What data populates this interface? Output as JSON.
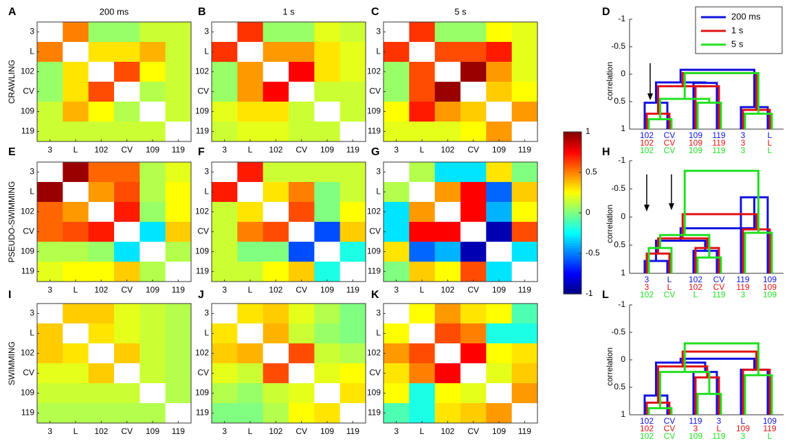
{
  "labels": [
    "3",
    "L",
    "102",
    "CV",
    "109",
    "119"
  ],
  "col_titles": [
    "200 ms",
    "1 s",
    "5 s"
  ],
  "row_titles": [
    "CRAWLING",
    "PSEUDO-SWIMMING",
    "SWIMMING"
  ],
  "panel_letters": [
    "A",
    "B",
    "C",
    "D",
    "E",
    "F",
    "G",
    "H",
    "I",
    "J",
    "K",
    "L"
  ],
  "colorbar": {
    "min": -1,
    "max": 1,
    "ticks": [
      "1",
      "0.5",
      "0",
      "-0.5",
      "-1"
    ]
  },
  "dendro_axis": {
    "label": "correlation",
    "ticks": [
      "-1",
      "-0.5",
      "0",
      "0.5",
      "1"
    ]
  },
  "legend": [
    {
      "name": "200 ms",
      "color": "#1010e0"
    },
    {
      "name": "1 s",
      "color": "#e01010"
    },
    {
      "name": "5 s",
      "color": "#20e020"
    }
  ],
  "chart_data": [
    {
      "type": "heatmap",
      "panel": "A",
      "title": "200 ms",
      "row_label": "CRAWLING",
      "matrix": [
        [
          1,
          0.5,
          0.05,
          0.05,
          0.15,
          0.15
        ],
        [
          0.5,
          1,
          0.3,
          0.3,
          0.4,
          0.15
        ],
        [
          0.05,
          0.3,
          1,
          0.6,
          0.25,
          0.15
        ],
        [
          0.05,
          0.3,
          0.6,
          1,
          0.1,
          0.15
        ],
        [
          0.15,
          0.4,
          0.25,
          0.1,
          1,
          0.15
        ],
        [
          0.15,
          0.15,
          0.15,
          0.15,
          0.15,
          1
        ]
      ]
    },
    {
      "type": "heatmap",
      "panel": "B",
      "title": "1 s",
      "matrix": [
        [
          1,
          0.65,
          0.05,
          0.05,
          0.2,
          0.15
        ],
        [
          0.65,
          1,
          0.45,
          0.45,
          0.3,
          0.2
        ],
        [
          0.05,
          0.45,
          1,
          0.75,
          0.3,
          0.2
        ],
        [
          0.05,
          0.45,
          0.75,
          1,
          0.15,
          0.15
        ],
        [
          0.2,
          0.3,
          0.3,
          0.15,
          1,
          0.15
        ],
        [
          0.15,
          0.2,
          0.2,
          0.15,
          0.15,
          1
        ]
      ]
    },
    {
      "type": "heatmap",
      "panel": "C",
      "title": "5 s",
      "matrix": [
        [
          1,
          0.65,
          0.05,
          0.05,
          0.25,
          0.2
        ],
        [
          0.65,
          1,
          0.6,
          0.6,
          0.7,
          0.2
        ],
        [
          0.05,
          0.6,
          1,
          0.95,
          0.45,
          0.2
        ],
        [
          0.05,
          0.6,
          0.95,
          1,
          0.35,
          0.25
        ],
        [
          0.25,
          0.7,
          0.45,
          0.35,
          1,
          0.45
        ],
        [
          0.2,
          0.2,
          0.2,
          0.25,
          0.45,
          1
        ]
      ]
    },
    {
      "type": "dendrogram",
      "panel": "D",
      "leaves": [
        {
          "color": "#1010e0",
          "labels": [
            "102",
            "CV",
            "109",
            "119",
            "3",
            "L"
          ]
        },
        {
          "color": "#e01010",
          "labels": [
            "102",
            "CV",
            "109",
            "119",
            "3",
            "L"
          ]
        },
        {
          "color": "#20e020",
          "labels": [
            "102",
            "CV",
            "109",
            "119",
            "3",
            "L"
          ]
        }
      ]
    },
    {
      "type": "heatmap",
      "panel": "E",
      "row_label": "PSEUDO-SWIMMING",
      "matrix": [
        [
          1,
          0.95,
          0.55,
          0.55,
          0.1,
          0.2
        ],
        [
          0.95,
          1,
          0.45,
          0.6,
          0.1,
          0.25
        ],
        [
          0.55,
          0.45,
          1,
          0.7,
          0.05,
          0.25
        ],
        [
          0.55,
          0.6,
          0.7,
          1,
          -0.3,
          0.35
        ],
        [
          0.1,
          0.1,
          0.05,
          -0.3,
          1,
          0.1
        ],
        [
          0.2,
          0.25,
          0.25,
          0.35,
          0.1,
          1
        ]
      ]
    },
    {
      "type": "heatmap",
      "panel": "F",
      "matrix": [
        [
          1,
          0.7,
          0.15,
          0.15,
          0.15,
          0.15
        ],
        [
          0.7,
          1,
          0.3,
          0.5,
          0.0,
          0.15
        ],
        [
          0.15,
          0.3,
          1,
          0.6,
          0.0,
          0.25
        ],
        [
          0.15,
          0.5,
          0.6,
          1,
          -0.6,
          0.35
        ],
        [
          0.15,
          0.0,
          0.0,
          -0.6,
          1,
          -0.2
        ],
        [
          0.15,
          0.15,
          0.25,
          0.35,
          -0.2,
          1
        ]
      ]
    },
    {
      "type": "heatmap",
      "panel": "G",
      "matrix": [
        [
          1,
          0.1,
          -0.3,
          -0.3,
          0.3,
          0.0
        ],
        [
          0.1,
          1,
          0.45,
          0.75,
          -0.55,
          0.35
        ],
        [
          -0.3,
          0.45,
          1,
          0.75,
          -0.4,
          0.25
        ],
        [
          -0.3,
          0.75,
          0.75,
          1,
          -0.9,
          0.6
        ],
        [
          0.3,
          -0.55,
          -0.4,
          -0.9,
          1,
          -0.3
        ],
        [
          0.0,
          0.35,
          0.25,
          0.6,
          -0.3,
          1
        ]
      ]
    },
    {
      "type": "dendrogram",
      "panel": "H",
      "leaves": [
        {
          "color": "#1010e0",
          "labels": [
            "3",
            "L",
            "102",
            "CV",
            "119",
            "109"
          ]
        },
        {
          "color": "#e01010",
          "labels": [
            "3",
            "L",
            "102",
            "CV",
            "119",
            "109"
          ]
        },
        {
          "color": "#20e020",
          "labels": [
            "102",
            "CV",
            "L",
            "119",
            "3",
            "109"
          ]
        }
      ]
    },
    {
      "type": "heatmap",
      "panel": "I",
      "row_label": "SWIMMING",
      "matrix": [
        [
          1,
          0.35,
          0.35,
          0.2,
          0.15,
          0.1
        ],
        [
          0.35,
          1,
          0.3,
          0.2,
          0.15,
          0.1
        ],
        [
          0.35,
          0.3,
          1,
          0.35,
          0.15,
          0.1
        ],
        [
          0.2,
          0.2,
          0.35,
          1,
          0.15,
          0.1
        ],
        [
          0.15,
          0.15,
          0.15,
          0.15,
          1,
          0.1
        ],
        [
          0.1,
          0.1,
          0.1,
          0.1,
          0.1,
          1
        ]
      ]
    },
    {
      "type": "heatmap",
      "panel": "J",
      "matrix": [
        [
          1,
          0.3,
          0.35,
          0.2,
          0.1,
          0.0
        ],
        [
          0.3,
          1,
          0.4,
          0.15,
          0.05,
          0.0
        ],
        [
          0.35,
          0.4,
          1,
          0.6,
          0.15,
          0.1
        ],
        [
          0.2,
          0.15,
          0.6,
          1,
          0.2,
          0.25
        ],
        [
          0.1,
          0.05,
          0.15,
          0.2,
          1,
          0.3
        ],
        [
          0.0,
          0.0,
          0.1,
          0.25,
          0.3,
          1
        ]
      ]
    },
    {
      "type": "heatmap",
      "panel": "K",
      "matrix": [
        [
          1,
          0.25,
          0.45,
          0.3,
          0.25,
          -0.1
        ],
        [
          0.25,
          1,
          0.6,
          0.5,
          -0.2,
          -0.2
        ],
        [
          0.45,
          0.6,
          1,
          0.75,
          0.25,
          0.3
        ],
        [
          0.3,
          0.5,
          0.75,
          1,
          0.2,
          0.35
        ],
        [
          0.25,
          -0.2,
          0.25,
          0.2,
          1,
          0.45
        ],
        [
          -0.1,
          -0.2,
          0.3,
          0.35,
          0.45,
          1
        ]
      ]
    },
    {
      "type": "dendrogram",
      "panel": "L",
      "leaves": [
        {
          "color": "#1010e0",
          "labels": [
            "102",
            "CV",
            "119",
            "3",
            "L",
            "109"
          ]
        },
        {
          "color": "#e01010",
          "labels": [
            "102",
            "CV",
            "3",
            "L",
            "109",
            "119"
          ]
        },
        {
          "color": "#20e020",
          "labels": [
            "102",
            "CV",
            "109",
            "119",
            "3",
            "L"
          ]
        }
      ]
    }
  ]
}
